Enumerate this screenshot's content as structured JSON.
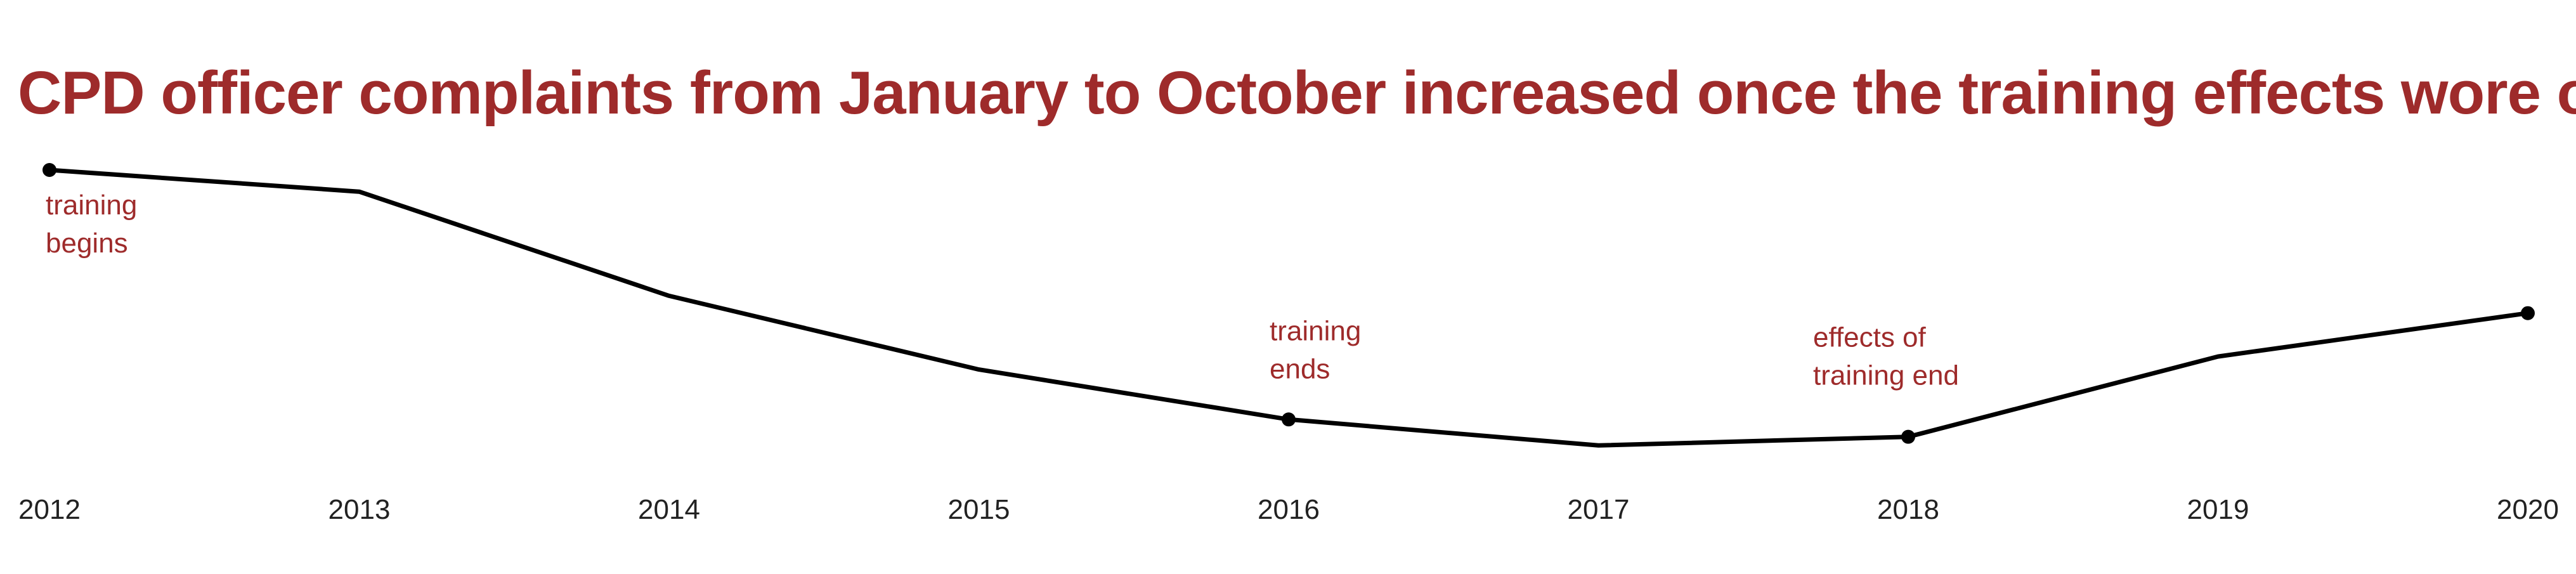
{
  "colors": {
    "title": "#9e2b2b",
    "annotation": "#9e2b2b",
    "line": "#000000",
    "tick": "#222222"
  },
  "chart_data": {
    "type": "line",
    "title": "CPD officer complaints from January to October increased once the training effects wore off.",
    "xlabel": "",
    "ylabel": "",
    "grid": false,
    "legend": "none",
    "x": [
      "2012",
      "2013",
      "2014",
      "2015",
      "2016",
      "2017",
      "2018",
      "2019",
      "2020"
    ],
    "values": [
      100,
      95,
      71,
      54,
      42.5,
      36.5,
      38.5,
      57,
      67
    ],
    "ylim": [
      0,
      100
    ],
    "markers": [
      0,
      4,
      6,
      8
    ],
    "annotations": [
      {
        "index": 0,
        "lines": [
          "training",
          "begins"
        ]
      },
      {
        "index": 4,
        "lines": [
          "training",
          "ends"
        ]
      },
      {
        "index": 6,
        "lines": [
          "effects of",
          "training end"
        ]
      }
    ]
  }
}
